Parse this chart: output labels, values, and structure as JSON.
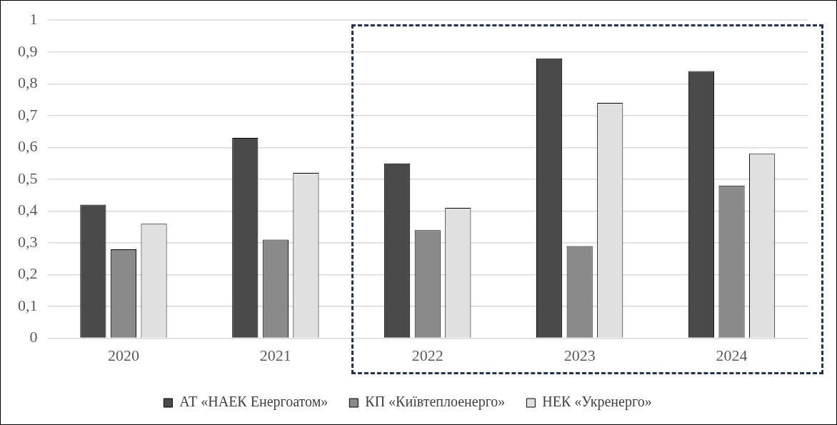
{
  "chart_data": {
    "type": "bar",
    "categories": [
      "2020",
      "2021",
      "2022",
      "2023",
      "2024"
    ],
    "series": [
      {
        "name": "АТ «НАЕК Енергоатом»",
        "color": "#4a4a4a",
        "values": [
          0.42,
          0.63,
          0.55,
          0.88,
          0.84
        ]
      },
      {
        "name": "КП «Київтеплоенерго»",
        "color": "#8a8a8a",
        "values": [
          0.28,
          0.31,
          0.34,
          0.29,
          0.48
        ]
      },
      {
        "name": "НЕК «Укренерго»",
        "color": "#e0e0e0",
        "values": [
          0.36,
          0.52,
          0.41,
          0.74,
          0.58
        ]
      }
    ],
    "ylim": [
      0,
      1
    ],
    "yticks": [
      0,
      {
        "value": 0.1,
        "label": "0,1"
      },
      {
        "value": 0.2,
        "label": "0,2"
      },
      {
        "value": 0.3,
        "label": "0,3"
      },
      {
        "value": 0.4,
        "label": "0,4"
      },
      {
        "value": 0.5,
        "label": "0,5"
      },
      {
        "value": 0.6,
        "label": "0,6"
      },
      {
        "value": 0.7,
        "label": "0,7"
      },
      {
        "value": 0.8,
        "label": "0,8"
      },
      {
        "value": 0.9,
        "label": "0,9"
      },
      1
    ],
    "grid": "y",
    "legend": "bottom"
  }
}
